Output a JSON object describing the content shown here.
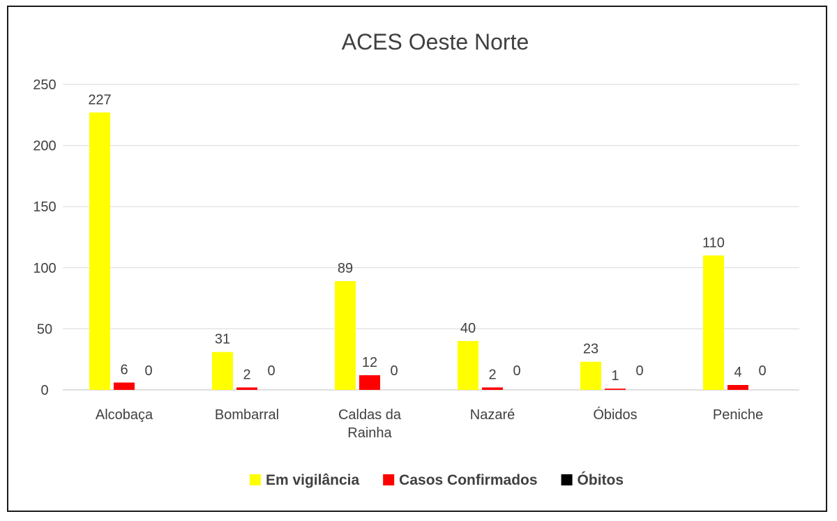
{
  "chart_data": {
    "type": "bar",
    "title": "ACES Oeste Norte",
    "categories": [
      [
        "Alcobaça"
      ],
      [
        "Bombarral"
      ],
      [
        "Caldas da",
        "Rainha"
      ],
      [
        "Nazaré"
      ],
      [
        "Óbidos"
      ],
      [
        "Peniche"
      ]
    ],
    "series": [
      {
        "name": "Em vigilância",
        "color": "#ffff00",
        "values": [
          227,
          31,
          89,
          40,
          23,
          110
        ]
      },
      {
        "name": "Casos Confirmados",
        "color": "#ff0000",
        "values": [
          6,
          2,
          12,
          2,
          1,
          4
        ]
      },
      {
        "name": "Óbitos",
        "color": "#000000",
        "values": [
          0,
          0,
          0,
          0,
          0,
          0
        ]
      }
    ],
    "ylim": [
      0,
      250
    ],
    "yticks": [
      0,
      50,
      100,
      150,
      200,
      250
    ],
    "grid": true,
    "legend_position": "bottom",
    "data_labels": true
  }
}
